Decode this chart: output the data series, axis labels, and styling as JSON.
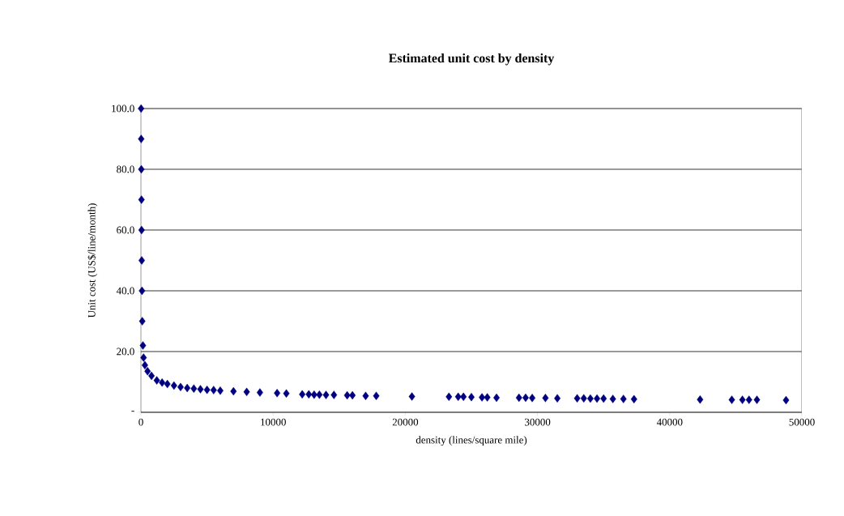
{
  "chart_data": {
    "type": "scatter",
    "title": "Estimated unit cost by density",
    "xlabel": "density (lines/square mile)",
    "ylabel": "Unit cost (US$/line/month)",
    "x": [
      10,
      20,
      30,
      40,
      50,
      60,
      80,
      100,
      150,
      200,
      300,
      500,
      800,
      1200,
      1600,
      2000,
      2500,
      3000,
      3500,
      4000,
      4500,
      5000,
      5500,
      6000,
      7000,
      8000,
      9000,
      10300,
      11000,
      12200,
      12700,
      13100,
      13500,
      14000,
      14600,
      15600,
      16000,
      17000,
      17800,
      20500,
      23300,
      24000,
      24400,
      25000,
      25800,
      26200,
      26900,
      28600,
      29100,
      29600,
      30600,
      31500,
      33000,
      33500,
      34000,
      34500,
      35000,
      35700,
      36500,
      37300,
      42300,
      44700,
      45500,
      46000,
      46600,
      48800
    ],
    "series": [
      {
        "color": "#000080",
        "values": [
          100,
          90,
          80,
          70,
          60,
          50,
          40,
          30,
          22,
          18,
          15.5,
          13.5,
          12,
          10.5,
          9.8,
          9.3,
          8.8,
          8.3,
          8,
          7.8,
          7.6,
          7.4,
          7.3,
          7.1,
          6.9,
          6.7,
          6.5,
          6.3,
          6.2,
          5.9,
          5.9,
          5.8,
          5.8,
          5.7,
          5.7,
          5.6,
          5.6,
          5.4,
          5.4,
          5.2,
          5.1,
          5.1,
          5.1,
          5,
          4.9,
          4.9,
          4.8,
          4.8,
          4.8,
          4.7,
          4.7,
          4.6,
          4.6,
          4.6,
          4.5,
          4.5,
          4.5,
          4.4,
          4.4,
          4.3,
          4.2,
          4.1,
          4.1,
          4.1,
          4.1,
          4
        ]
      }
    ],
    "marker": "diamond",
    "grid": "y",
    "xlim": [
      0,
      50000
    ],
    "xticks": [
      0,
      10000,
      20000,
      30000,
      40000,
      50000
    ],
    "ylim": [
      0,
      100
    ],
    "yticks": [
      {
        "value": 0,
        "label": "-"
      },
      {
        "value": 20,
        "label": "20.0"
      },
      {
        "value": 40,
        "label": "40.0"
      },
      {
        "value": 60,
        "label": "60.0"
      },
      {
        "value": 80,
        "label": "80.0"
      },
      {
        "value": 100,
        "label": "100.0"
      }
    ]
  }
}
